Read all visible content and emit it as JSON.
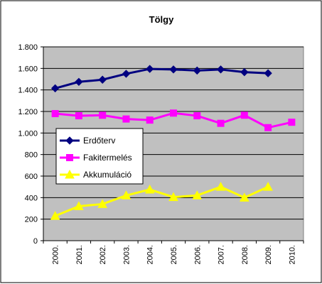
{
  "chart_data": {
    "type": "line",
    "title": "Tölgy",
    "categories": [
      "2000.",
      "2001.",
      "2002.",
      "2003.",
      "2004.",
      "2005.",
      "2006.",
      "2007.",
      "2008.",
      "2009.",
      "2010."
    ],
    "ylim": [
      0,
      1800
    ],
    "yticks": [
      0,
      200,
      400,
      600,
      800,
      1000,
      1200,
      1400,
      1600,
      1800
    ],
    "ytick_labels": [
      "0",
      "200",
      "400",
      "600",
      "800",
      "1.000",
      "1.200",
      "1.400",
      "1.600",
      "1.800"
    ],
    "grid": "horizontal",
    "plot_background": "#c0c0c0",
    "legend_position": "left, inside plot",
    "series": [
      {
        "name": "Erdőterv",
        "color": "#000080",
        "marker": "diamond",
        "values": [
          1415,
          1475,
          1495,
          1550,
          1595,
          1590,
          1580,
          1590,
          1565,
          1555,
          null
        ]
      },
      {
        "name": "Fakitermelés",
        "color": "#ff00ff",
        "marker": "square",
        "values": [
          1180,
          1160,
          1165,
          1130,
          1120,
          1185,
          1160,
          1090,
          1165,
          1050,
          1100
        ]
      },
      {
        "name": "Akkumuláció",
        "color": "#ffff00",
        "marker": "triangle",
        "values": [
          230,
          320,
          340,
          420,
          475,
          405,
          420,
          500,
          400,
          500,
          null
        ]
      }
    ]
  }
}
